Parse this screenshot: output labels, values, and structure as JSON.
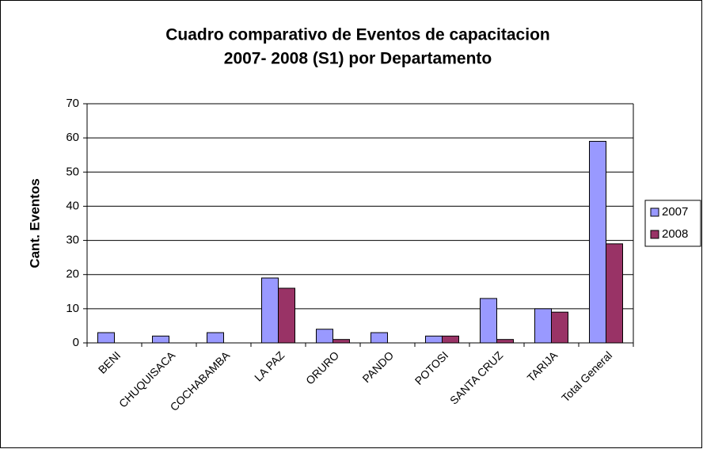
{
  "chart_data": {
    "type": "bar",
    "title": "Cuadro comparativo de Eventos de capacitacion",
    "subtitle": "2007- 2008 (S1) por Departamento",
    "y_label": "Cant. Eventos",
    "categories": [
      "BENI",
      "CHUQUISACA",
      "COCHABAMBA",
      "LA PAZ",
      "ORURO",
      "PANDO",
      "POTOSI",
      "SANTA CRUZ",
      "TARIJA",
      "Total General"
    ],
    "series": [
      {
        "name": "2007",
        "color": "#9999ff",
        "values": [
          3,
          2,
          3,
          19,
          4,
          3,
          2,
          13,
          10,
          59
        ]
      },
      {
        "name": "2008",
        "color": "#993366",
        "values": [
          0,
          0,
          0,
          16,
          1,
          0,
          2,
          1,
          9,
          29
        ]
      }
    ],
    "ylim": [
      0,
      70
    ],
    "yticks": [
      0,
      10,
      20,
      30,
      40,
      50,
      60,
      70
    ],
    "grid": true,
    "legend": "right"
  }
}
